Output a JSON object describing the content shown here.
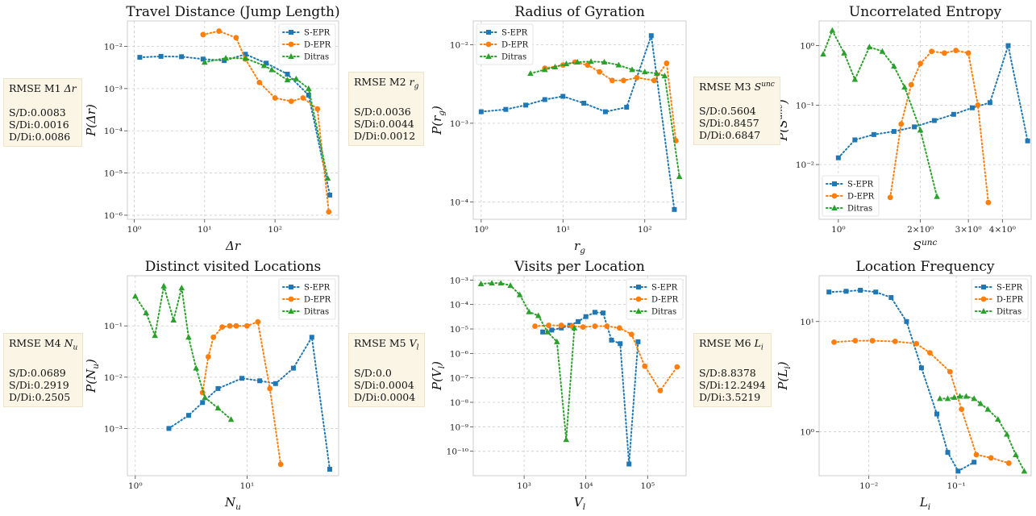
{
  "colors": {
    "S-EPR": "#1f77b4",
    "D-EPR": "#ff7f0e",
    "Ditras": "#2ca02c"
  },
  "chart_data": [
    {
      "type": "line",
      "title": "Travel Distance (Jump Length)",
      "xlabel": "Δr",
      "ylabel": "P(Δr)",
      "xscale": "log",
      "yscale": "log",
      "xlim": [
        0.8,
        800
      ],
      "ylim": [
        8e-07,
        0.04
      ],
      "x_ticks": [
        {
          "v": 1,
          "label": "10⁰"
        },
        {
          "v": 10,
          "label": "10¹"
        },
        {
          "v": 100,
          "label": "10²"
        }
      ],
      "y_ticks": [
        {
          "v": 1e-06,
          "label": "10⁻⁶"
        },
        {
          "v": 1e-05,
          "label": "10⁻⁵"
        },
        {
          "v": 0.0001,
          "label": "10⁻⁴"
        },
        {
          "v": 0.001,
          "label": "10⁻³"
        },
        {
          "v": 0.01,
          "label": "10⁻²"
        }
      ],
      "legend": "top-right",
      "series": [
        {
          "name": "S-EPR",
          "marker": "square",
          "x": [
            1.2,
            2.4,
            4.7,
            9.5,
            19,
            38,
            75,
            150,
            300,
            600
          ],
          "y": [
            0.0055,
            0.0058,
            0.0057,
            0.005,
            0.0046,
            0.0065,
            0.004,
            0.0022,
            0.0007,
            3e-06
          ]
        },
        {
          "name": "D-EPR",
          "marker": "circle",
          "x": [
            9.5,
            16,
            28,
            38,
            60,
            100,
            170,
            250,
            400,
            580
          ],
          "y": [
            0.019,
            0.023,
            0.016,
            0.005,
            0.0014,
            0.0006,
            0.0005,
            0.0006,
            0.00033,
            1.2e-06
          ]
        },
        {
          "name": "Ditras",
          "marker": "triangle",
          "x": [
            10,
            20,
            38,
            70,
            90,
            150,
            200,
            300,
            560
          ],
          "y": [
            0.0042,
            0.0053,
            0.0052,
            0.0035,
            0.0028,
            0.0016,
            0.0017,
            0.001,
            7.5e-06
          ]
        }
      ],
      "rmse": {
        "title": "RMSE M1 ",
        "symbol": "Δr",
        "lines": [
          "S/D:0.0083",
          "S/Di:0.0016",
          "D/Di:0.0086"
        ]
      }
    },
    {
      "type": "line",
      "title": "Radius of Gyration",
      "xlabel": "r",
      "xlabel_sub": "g",
      "ylabel": "P(r",
      "ylabel_sub": "g",
      "ylabel_end": ")",
      "xscale": "log",
      "yscale": "log",
      "xlim": [
        0.8,
        320
      ],
      "ylim": [
        6e-05,
        0.02
      ],
      "x_ticks": [
        {
          "v": 1,
          "label": "10⁰"
        },
        {
          "v": 10,
          "label": "10¹"
        },
        {
          "v": 100,
          "label": "10²"
        }
      ],
      "y_ticks": [
        {
          "v": 0.0001,
          "label": "10⁻⁴"
        },
        {
          "v": 0.001,
          "label": "10⁻³"
        },
        {
          "v": 0.01,
          "label": "10⁻²"
        }
      ],
      "legend": "top-left",
      "series": [
        {
          "name": "S-EPR",
          "marker": "square",
          "x": [
            1,
            2,
            3.5,
            6,
            10,
            18,
            33,
            60,
            120,
            230
          ],
          "y": [
            0.0014,
            0.0015,
            0.0017,
            0.002,
            0.0022,
            0.0018,
            0.0014,
            0.0016,
            0.013,
            8e-05
          ]
        },
        {
          "name": "D-EPR",
          "marker": "circle",
          "x": [
            6,
            10,
            14,
            20,
            28,
            40,
            55,
            80,
            130,
            185,
            240
          ],
          "y": [
            0.005,
            0.0055,
            0.006,
            0.0055,
            0.0045,
            0.0035,
            0.0035,
            0.0038,
            0.0035,
            0.0058,
            0.0006
          ]
        },
        {
          "name": "Ditras",
          "marker": "triangle",
          "x": [
            4,
            6,
            8,
            11,
            15,
            22,
            32,
            48,
            70,
            100,
            140,
            175,
            265
          ],
          "y": [
            0.0043,
            0.0048,
            0.0052,
            0.0057,
            0.006,
            0.0061,
            0.006,
            0.0055,
            0.0048,
            0.0045,
            0.0043,
            0.004,
            0.00021
          ]
        }
      ],
      "rmse": {
        "title": "RMSE M2 ",
        "symbol": "r",
        "symbol_sub": "g",
        "lines": [
          "S/D:0.0036",
          "S/Di:0.0044",
          "D/Di:0.0012"
        ]
      }
    },
    {
      "type": "line",
      "title": "Uncorrelated Entropy",
      "xlabel": "S",
      "xlabel_sup": "unc",
      "ylabel": "P(S",
      "ylabel_sup": "unc",
      "ylabel_end": ")",
      "xscale": "log",
      "yscale": "log",
      "xlim": [
        0.85,
        5.1
      ],
      "ylim": [
        0.0012,
        2.6
      ],
      "x_ticks": [
        {
          "v": 1,
          "label": "10⁰"
        },
        {
          "v": 2,
          "label": "2×10⁰"
        },
        {
          "v": 3,
          "label": "3×10⁰"
        },
        {
          "v": 4,
          "label": "4×10⁰"
        }
      ],
      "y_ticks": [
        {
          "v": 0.01,
          "label": "10⁻²"
        },
        {
          "v": 0.1,
          "label": "10⁻¹"
        },
        {
          "v": 1,
          "label": "10⁰"
        }
      ],
      "legend": "bottom-left",
      "series": [
        {
          "name": "S-EPR",
          "marker": "square",
          "x": [
            1.0,
            1.15,
            1.35,
            1.6,
            1.9,
            2.25,
            2.65,
            3.1,
            3.6,
            4.2,
            4.95
          ],
          "y": [
            0.013,
            0.026,
            0.032,
            0.036,
            0.043,
            0.055,
            0.07,
            0.09,
            0.11,
            1.0,
            0.025
          ]
        },
        {
          "name": "D-EPR",
          "marker": "circle",
          "x": [
            1.55,
            1.7,
            1.85,
            2.0,
            2.2,
            2.45,
            2.7,
            3.0,
            3.25,
            3.55
          ],
          "y": [
            0.0028,
            0.048,
            0.22,
            0.5,
            0.8,
            0.75,
            0.83,
            0.75,
            0.1,
            0.0023
          ]
        },
        {
          "name": "Ditras",
          "marker": "triangle",
          "x": [
            0.88,
            0.95,
            1.05,
            1.15,
            1.3,
            1.45,
            1.6,
            1.75,
            2.0,
            2.3
          ],
          "y": [
            0.72,
            1.8,
            0.75,
            0.27,
            0.95,
            0.8,
            0.45,
            0.2,
            0.038,
            0.0029
          ]
        }
      ],
      "rmse": {
        "title": "RMSE M3 ",
        "symbol": "S",
        "symbol_sup": "unc",
        "lines": [
          "S/D:0.5604",
          "S/Di:0.8457",
          "D/Di:0.6847"
        ]
      }
    },
    {
      "type": "line",
      "title": "Distinct visited Locations",
      "xlabel": "N",
      "xlabel_sub": "u",
      "ylabel": "P(N",
      "ylabel_sub": "u",
      "ylabel_end": ")",
      "xscale": "log",
      "yscale": "log",
      "xlim": [
        0.85,
        66
      ],
      "ylim": [
        0.00012,
        0.95
      ],
      "x_ticks": [
        {
          "v": 1,
          "label": "10⁰"
        },
        {
          "v": 10,
          "label": "10¹"
        }
      ],
      "y_ticks": [
        {
          "v": 0.001,
          "label": "10⁻³"
        },
        {
          "v": 0.01,
          "label": "10⁻²"
        },
        {
          "v": 0.1,
          "label": "10⁻¹"
        }
      ],
      "legend": "top-right",
      "series": [
        {
          "name": "S-EPR",
          "marker": "square",
          "x": [
            2,
            3,
            4,
            5.5,
            9,
            13,
            18,
            26,
            38,
            55
          ],
          "y": [
            0.001,
            0.0018,
            0.0032,
            0.006,
            0.0095,
            0.0085,
            0.0075,
            0.015,
            0.06,
            0.00016
          ]
        },
        {
          "name": "D-EPR",
          "marker": "circle",
          "x": [
            4,
            4.5,
            5,
            6,
            7,
            8,
            10,
            12.5,
            16,
            20
          ],
          "y": [
            0.005,
            0.025,
            0.06,
            0.095,
            0.1,
            0.1,
            0.1,
            0.12,
            0.006,
            0.0002
          ]
        },
        {
          "name": "Ditras",
          "marker": "triangle",
          "x": [
            1,
            1.25,
            1.5,
            1.8,
            2.2,
            2.6,
            3,
            3.5,
            4.2,
            5.5,
            7.2
          ],
          "y": [
            0.38,
            0.18,
            0.065,
            0.6,
            0.13,
            0.55,
            0.06,
            0.015,
            0.004,
            0.0025,
            0.0015
          ]
        }
      ],
      "rmse": {
        "title": "RMSE M4 ",
        "symbol": "N",
        "symbol_sub": "u",
        "lines": [
          "S/D:0.0689",
          "S/Di:0.2919",
          "D/Di:0.2505"
        ]
      }
    },
    {
      "type": "line",
      "title": "Visits per Location",
      "xlabel": "V",
      "xlabel_sub": "l",
      "ylabel": "P(V",
      "ylabel_sub": "l",
      "ylabel_end": ")",
      "xscale": "log",
      "yscale": "log",
      "xlim": [
        150,
        420000
      ],
      "ylim": [
        1e-11,
        0.0015
      ],
      "x_ticks": [
        {
          "v": 1000,
          "label": "10³"
        },
        {
          "v": 10000,
          "label": "10⁴"
        },
        {
          "v": 100000,
          "label": "10⁵"
        }
      ],
      "y_ticks": [
        {
          "v": 1e-10,
          "label": "10⁻¹⁰"
        },
        {
          "v": 1e-09,
          "label": "10⁻⁹"
        },
        {
          "v": 1e-08,
          "label": "10⁻⁸"
        },
        {
          "v": 1e-07,
          "label": "10⁻⁷"
        },
        {
          "v": 1e-06,
          "label": "10⁻⁶"
        },
        {
          "v": 1e-05,
          "label": "10⁻⁵"
        },
        {
          "v": 0.0001,
          "label": "10⁻⁴"
        },
        {
          "v": 0.001,
          "label": "10⁻³"
        }
      ],
      "legend": "top-right",
      "series": [
        {
          "name": "S-EPR",
          "marker": "square",
          "x": [
            2000,
            2800,
            4000,
            5500,
            7500,
            10000,
            14000,
            19000,
            26000,
            36000,
            50000,
            70000
          ],
          "y": [
            7.5e-06,
            9e-06,
            1.1e-05,
            1.4e-05,
            2e-05,
            3.2e-05,
            4.8e-05,
            4.5e-05,
            3.5e-06,
            2.5e-06,
            3e-11,
            3e-06
          ]
        },
        {
          "name": "D-EPR",
          "marker": "circle",
          "x": [
            1500,
            2500,
            4000,
            6000,
            9000,
            14000,
            22000,
            35000,
            55000,
            90000,
            160000,
            300000
          ],
          "y": [
            1.3e-05,
            1.4e-05,
            1.4e-05,
            1.3e-05,
            1.2e-05,
            1.3e-05,
            1.3e-05,
            1.1e-05,
            6e-06,
            3e-07,
            3e-08,
            2.8e-07
          ]
        },
        {
          "name": "Ditras",
          "marker": "triangle",
          "x": [
            200,
            300,
            420,
            600,
            850,
            1200,
            1700,
            2400,
            3400,
            4800,
            6500
          ],
          "y": [
            0.0007,
            0.00075,
            0.00075,
            0.0006,
            0.00025,
            5e-05,
            3.5e-05,
            7.5e-06,
            3e-06,
            3e-10,
            1.1e-05
          ]
        }
      ],
      "rmse": {
        "title": "RMSE M5 ",
        "symbol": "V",
        "symbol_sub": "l",
        "lines": [
          "S/D:0.0",
          "S/Di:0.0004",
          "D/Di:0.0004"
        ]
      }
    },
    {
      "type": "line",
      "title": "Location Frequency",
      "xlabel": "L",
      "xlabel_sub": "i",
      "ylabel": "P(L",
      "ylabel_sub": "i",
      "ylabel_end": ")",
      "xscale": "log",
      "yscale": "log",
      "xlim": [
        0.0027,
        0.72
      ],
      "ylim": [
        0.4,
        26
      ],
      "x_ticks": [
        {
          "v": 0.01,
          "label": "10⁻²"
        },
        {
          "v": 0.1,
          "label": "10⁻¹"
        }
      ],
      "y_ticks": [
        {
          "v": 1,
          "label": "10⁰"
        },
        {
          "v": 10,
          "label": "10¹"
        }
      ],
      "legend": "top-right",
      "series": [
        {
          "name": "S-EPR",
          "marker": "square",
          "x": [
            0.0035,
            0.0055,
            0.008,
            0.012,
            0.018,
            0.027,
            0.04,
            0.06,
            0.08,
            0.105,
            0.16
          ],
          "y": [
            18.5,
            18.8,
            19.2,
            18.5,
            16.5,
            10,
            3.8,
            1.45,
            0.65,
            0.44,
            0.53
          ]
        },
        {
          "name": "D-EPR",
          "marker": "circle",
          "x": [
            0.004,
            0.007,
            0.011,
            0.02,
            0.035,
            0.05,
            0.085,
            0.115,
            0.17,
            0.25,
            0.4
          ],
          "y": [
            6.5,
            6.7,
            6.7,
            6.6,
            6.3,
            5.2,
            3.5,
            1.6,
            0.62,
            0.58,
            0.52
          ]
        },
        {
          "name": "Ditras",
          "marker": "triangle",
          "x": [
            0.065,
            0.08,
            0.095,
            0.11,
            0.13,
            0.16,
            0.19,
            0.23,
            0.3,
            0.38,
            0.48,
            0.6
          ],
          "y": [
            2.0,
            2.0,
            2.05,
            2.1,
            2.1,
            2.0,
            1.8,
            1.6,
            1.3,
            0.95,
            0.62,
            0.44
          ]
        }
      ],
      "rmse": {
        "title": "RMSE M6 ",
        "symbol": "L",
        "symbol_sub": "i",
        "lines": [
          "S/D:8.8378",
          "S/Di:12.2494",
          "D/Di:3.5219"
        ]
      }
    }
  ]
}
